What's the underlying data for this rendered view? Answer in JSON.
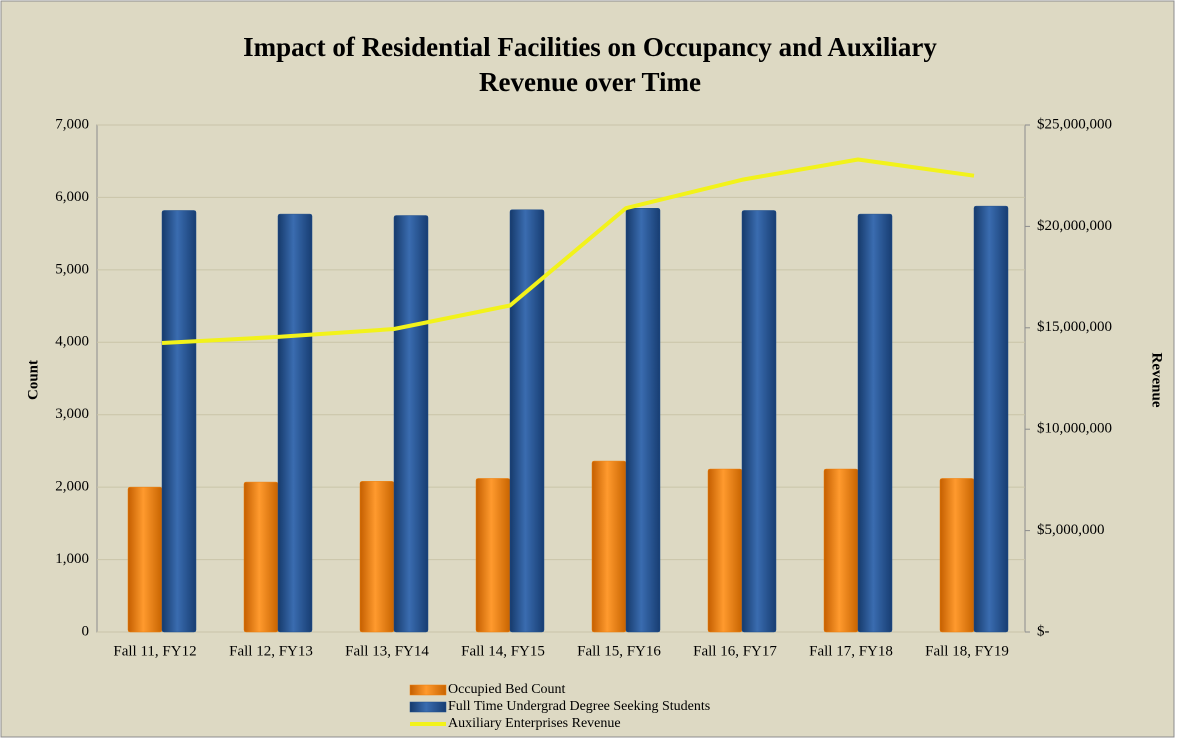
{
  "chart_data": {
    "type": "bar",
    "title": [
      "Impact of Residential Facilities on Occupancy and Auxiliary",
      "Revenue over Time"
    ],
    "ylabel": "Count",
    "y2label": "Revenue",
    "categories": [
      "Fall 11, FY12",
      "Fall 12, FY13",
      "Fall 13, FY14",
      "Fall 14, FY15",
      "Fall 15, FY16",
      "Fall 16, FY17",
      "Fall 17, FY18",
      "Fall 18, FY19"
    ],
    "series": [
      {
        "name": "Occupied Bed Count",
        "color": "#f07f09",
        "values": [
          2000,
          2070,
          2080,
          2120,
          2360,
          2250,
          2250,
          2120
        ]
      },
      {
        "name": "Full Time Undergrad Degree Seeking Students",
        "color": "#1f4e8c",
        "values": [
          5820,
          5770,
          5750,
          5830,
          5850,
          5820,
          5770,
          5880
        ]
      },
      {
        "name": "Auxiliary Enterprises Revenue",
        "color": "#f2f21a",
        "type": "line",
        "axis": "y2",
        "values": [
          14250000,
          14550000,
          14940000,
          16100000,
          20900000,
          22300000,
          23300000,
          22500000
        ]
      }
    ],
    "ylim": [
      0,
      7000
    ],
    "yticks": [
      0,
      {
        "value": 1000,
        "label": "1,000"
      },
      {
        "value": 2000,
        "label": "2,000"
      },
      {
        "value": 3000,
        "label": "3,000"
      },
      {
        "value": 4000,
        "label": "4,000"
      },
      {
        "value": 5000,
        "label": "5,000"
      },
      {
        "value": 6000,
        "label": "6,000"
      },
      {
        "value": 7000,
        "label": "7,000"
      }
    ],
    "y2lim": [
      0,
      25000000
    ],
    "y2ticks": [
      {
        "value": 0,
        "label": "$-"
      },
      {
        "value": 5000000,
        "label": "$5,000,000"
      },
      {
        "value": 10000000,
        "label": "$10,000,000"
      },
      {
        "value": 15000000,
        "label": "$15,000,000"
      },
      {
        "value": 20000000,
        "label": "$20,000,000"
      },
      {
        "value": 25000000,
        "label": "$25,000,000"
      }
    ],
    "grid": true,
    "legend": "bottom"
  }
}
